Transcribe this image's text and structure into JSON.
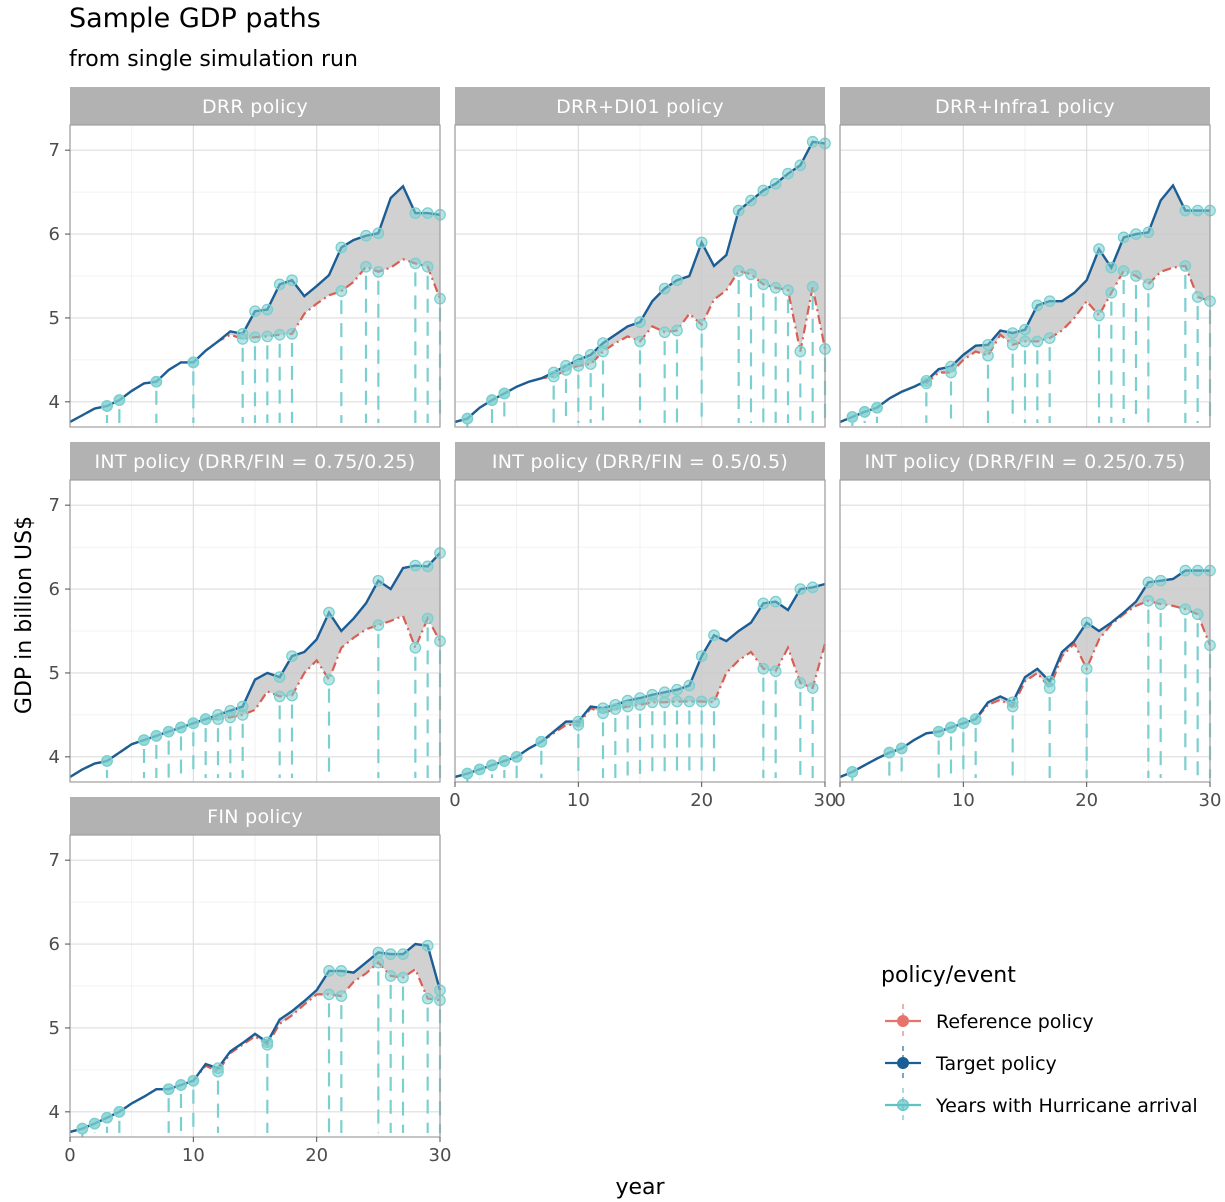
{
  "title": "Sample GDP paths",
  "subtitle": "from single simulation run",
  "x_axis_label": "year",
  "y_axis_label": "GDP in billion US$",
  "legend": {
    "title": "policy/event",
    "items": [
      {
        "label": "Reference policy",
        "color": "#e8736c"
      },
      {
        "label": "Target policy",
        "color": "#1b5e96"
      },
      {
        "label": "Years with Hurricane arrival",
        "color": "#5fc3c5"
      }
    ]
  },
  "colors": {
    "reference": "#d95f55",
    "target": "#1b5e96",
    "hurricane": "#7ccfcf",
    "ribbon": "#c9c9c9",
    "strip": "#b2b2b2",
    "grid_major": "#dedede",
    "grid_minor": "#efefef",
    "panel_border": "#9e9e9e"
  },
  "chart_data": {
    "type": "line",
    "x_range": [
      0,
      30
    ],
    "y_range": [
      3.7,
      7.3
    ],
    "x_ticks": [
      0,
      10,
      20,
      30
    ],
    "y_ticks": [
      4,
      5,
      6,
      7
    ],
    "panels": [
      {
        "title": "DRR policy",
        "hurricane_years": [
          3,
          4,
          7,
          10,
          14,
          15,
          16,
          17,
          18,
          22,
          24,
          25,
          28,
          29,
          30
        ],
        "target": [
          3.76,
          3.84,
          3.92,
          3.95,
          4.02,
          4.13,
          4.22,
          4.24,
          4.38,
          4.47,
          4.47,
          4.61,
          4.72,
          4.84,
          4.81,
          5.08,
          5.1,
          5.4,
          5.45,
          5.26,
          5.38,
          5.51,
          5.84,
          5.93,
          5.98,
          6.01,
          6.43,
          6.57,
          6.25,
          6.25,
          6.23
        ],
        "reference": [
          3.76,
          3.84,
          3.92,
          3.95,
          4.02,
          4.13,
          4.22,
          4.24,
          4.38,
          4.47,
          4.47,
          4.61,
          4.72,
          4.8,
          4.75,
          4.77,
          4.78,
          4.8,
          4.81,
          5.05,
          5.17,
          5.27,
          5.32,
          5.43,
          5.61,
          5.55,
          5.6,
          5.7,
          5.65,
          5.61,
          5.23
        ]
      },
      {
        "title": "DRR+DI01 policy",
        "hurricane_years": [
          1,
          3,
          4,
          8,
          9,
          10,
          11,
          12,
          15,
          17,
          18,
          20,
          23,
          24,
          25,
          26,
          27,
          28,
          29,
          30
        ],
        "target": [
          3.76,
          3.8,
          3.93,
          4.02,
          4.1,
          4.18,
          4.24,
          4.28,
          4.35,
          4.43,
          4.5,
          4.56,
          4.7,
          4.8,
          4.9,
          4.95,
          5.2,
          5.35,
          5.45,
          5.5,
          5.9,
          5.62,
          5.75,
          6.28,
          6.4,
          6.52,
          6.6,
          6.72,
          6.82,
          7.1,
          7.08
        ],
        "reference": [
          3.76,
          3.8,
          3.93,
          4.02,
          4.1,
          4.18,
          4.24,
          4.28,
          4.3,
          4.38,
          4.43,
          4.45,
          4.6,
          4.7,
          4.78,
          4.72,
          4.9,
          4.83,
          4.85,
          5.05,
          4.92,
          5.22,
          5.33,
          5.56,
          5.52,
          5.4,
          5.36,
          5.33,
          4.6,
          5.37,
          4.63
        ]
      },
      {
        "title": "DRR+Infra1 policy",
        "hurricane_years": [
          1,
          2,
          3,
          7,
          9,
          12,
          14,
          15,
          16,
          17,
          21,
          22,
          23,
          24,
          25,
          28,
          29,
          30
        ],
        "target": [
          3.76,
          3.82,
          3.88,
          3.93,
          4.04,
          4.12,
          4.18,
          4.25,
          4.39,
          4.42,
          4.56,
          4.67,
          4.68,
          4.85,
          4.82,
          4.86,
          5.15,
          5.2,
          5.2,
          5.3,
          5.45,
          5.82,
          5.6,
          5.96,
          6.0,
          6.02,
          6.4,
          6.58,
          6.28,
          6.28,
          6.28
        ],
        "reference": [
          3.76,
          3.82,
          3.88,
          3.93,
          4.04,
          4.12,
          4.18,
          4.22,
          4.35,
          4.35,
          4.5,
          4.6,
          4.55,
          4.8,
          4.68,
          4.72,
          4.72,
          4.76,
          4.85,
          5.0,
          5.2,
          5.03,
          5.3,
          5.56,
          5.5,
          5.4,
          5.55,
          5.6,
          5.62,
          5.25,
          5.2
        ]
      },
      {
        "title": "INT policy (DRR/FIN = 0.75/0.25)",
        "hurricane_years": [
          3,
          6,
          7,
          8,
          9,
          10,
          11,
          12,
          13,
          14,
          17,
          18,
          21,
          25,
          28,
          29,
          30
        ],
        "target": [
          3.76,
          3.85,
          3.92,
          3.95,
          4.05,
          4.15,
          4.2,
          4.25,
          4.3,
          4.35,
          4.4,
          4.45,
          4.5,
          4.55,
          4.6,
          4.92,
          5.0,
          4.95,
          5.2,
          5.25,
          5.4,
          5.72,
          5.5,
          5.65,
          5.83,
          6.1,
          6.0,
          6.25,
          6.28,
          6.27,
          6.43
        ],
        "reference": [
          3.76,
          3.85,
          3.92,
          3.95,
          4.05,
          4.15,
          4.2,
          4.25,
          4.3,
          4.35,
          4.4,
          4.45,
          4.45,
          4.47,
          4.5,
          4.56,
          4.78,
          4.72,
          4.73,
          5.0,
          5.15,
          4.92,
          5.3,
          5.42,
          5.52,
          5.57,
          5.62,
          5.68,
          5.3,
          5.65,
          5.38
        ]
      },
      {
        "title": "INT policy (DRR/FIN = 0.5/0.5)",
        "hurricane_years": [
          1,
          2,
          3,
          4,
          5,
          7,
          10,
          12,
          13,
          14,
          15,
          16,
          17,
          18,
          19,
          20,
          21,
          25,
          26,
          28,
          29
        ],
        "target": [
          3.76,
          3.8,
          3.85,
          3.9,
          3.95,
          4.0,
          4.1,
          4.18,
          4.3,
          4.42,
          4.42,
          4.6,
          4.58,
          4.62,
          4.67,
          4.7,
          4.74,
          4.77,
          4.8,
          4.85,
          5.2,
          5.45,
          5.38,
          5.5,
          5.6,
          5.83,
          5.85,
          5.75,
          6.0,
          6.02,
          6.06
        ],
        "reference": [
          3.76,
          3.8,
          3.85,
          3.9,
          3.95,
          4.0,
          4.1,
          4.18,
          4.28,
          4.38,
          4.38,
          4.58,
          4.52,
          4.57,
          4.6,
          4.62,
          4.65,
          4.65,
          4.66,
          4.66,
          4.66,
          4.65,
          5.0,
          5.15,
          5.25,
          5.05,
          5.02,
          5.3,
          4.88,
          4.82,
          5.35
        ]
      },
      {
        "title": "INT policy (DRR/FIN = 0.25/0.75)",
        "hurricane_years": [
          1,
          4,
          5,
          8,
          9,
          10,
          11,
          14,
          17,
          20,
          25,
          26,
          28,
          29,
          30
        ],
        "target": [
          3.76,
          3.82,
          3.9,
          3.98,
          4.05,
          4.1,
          4.2,
          4.28,
          4.3,
          4.35,
          4.4,
          4.45,
          4.65,
          4.72,
          4.65,
          4.95,
          5.05,
          4.9,
          5.25,
          5.38,
          5.6,
          5.5,
          5.6,
          5.72,
          5.85,
          6.08,
          6.1,
          6.12,
          6.22,
          6.22,
          6.22
        ],
        "reference": [
          3.76,
          3.82,
          3.9,
          3.98,
          4.05,
          4.1,
          4.2,
          4.28,
          4.3,
          4.35,
          4.4,
          4.45,
          4.62,
          4.68,
          4.6,
          4.9,
          5.0,
          4.82,
          5.2,
          5.35,
          5.05,
          5.4,
          5.58,
          5.7,
          5.8,
          5.86,
          5.82,
          5.8,
          5.76,
          5.7,
          5.33
        ]
      },
      {
        "title": "FIN policy",
        "hurricane_years": [
          1,
          2,
          3,
          4,
          8,
          9,
          10,
          12,
          16,
          21,
          22,
          25,
          26,
          27,
          29,
          30
        ],
        "target": [
          3.76,
          3.8,
          3.86,
          3.93,
          4.0,
          4.1,
          4.18,
          4.27,
          4.27,
          4.32,
          4.37,
          4.57,
          4.52,
          4.72,
          4.82,
          4.93,
          4.83,
          5.1,
          5.2,
          5.32,
          5.45,
          5.68,
          5.68,
          5.66,
          5.78,
          5.9,
          5.88,
          5.88,
          6.0,
          5.98,
          5.45
        ],
        "reference": [
          3.76,
          3.8,
          3.86,
          3.93,
          4.0,
          4.1,
          4.18,
          4.27,
          4.27,
          4.32,
          4.37,
          4.55,
          4.48,
          4.7,
          4.8,
          4.9,
          4.8,
          5.05,
          5.15,
          5.28,
          5.4,
          5.4,
          5.38,
          5.55,
          5.65,
          5.78,
          5.62,
          5.6,
          5.7,
          5.35,
          5.33
        ]
      }
    ]
  }
}
